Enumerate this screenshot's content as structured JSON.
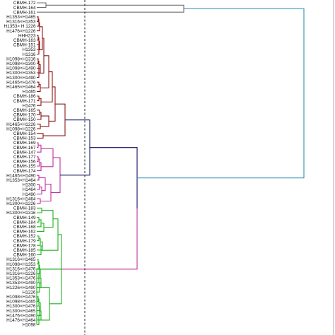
{
  "figure": {
    "type": "dendrogram",
    "leaves": [
      "CBMH-172",
      "CBMH-164",
      "CBMH-161",
      "H1353×H1465",
      "H1316×H1353",
      "H1353× H 1226",
      "H1476×H1226",
      "HHH223",
      "CBMH-163",
      "CBMH-151",
      "H1353",
      "H1316",
      "H1098×H1316",
      "H1098×H1300",
      "H1098×H1490",
      "H1300×H1353",
      "H1300×H1490",
      "H1465×H1476",
      "H1465×H1464",
      "H1465",
      "CBMH-186",
      "CBMH-171",
      "H1476",
      "CBMH-165",
      "CBMH-170",
      "CBMH-150",
      "H1465×H1226",
      "H1098×H1226",
      "CBMH-154",
      "CBMH-153",
      "CBMH-169",
      "CBMH-167",
      "CBMH-147",
      "CBMH-177",
      "CBMH-156",
      "CBMH-155",
      "CBMH-174",
      "H1465×H1490",
      "H1353×H1464",
      "H1300",
      "H1464",
      "H1490",
      "H1316×H1464",
      "H1300×H1226",
      "CBMH-183",
      "H1300×H1316",
      "CBMH-149",
      "CBMH-184",
      "CBMH-168",
      "CBMH-162",
      "CBMH-152",
      "CBMH-179",
      "CBMH-178",
      "CBMH-185",
      "CBMH-160",
      "H1316×H1465",
      "H1098×H1353",
      "H1316×H1476",
      "H1316×H1226",
      "H1353×H1476",
      "H1353×H1490",
      "H1226×H1490",
      "H1226",
      "H1098×H1476",
      "H1098×H1465",
      "H1300×H1476",
      "H1300×H1465",
      "H1476×H1490",
      "H1476×H1464",
      "H1098"
    ],
    "clusters": [
      {
        "name": "grey",
        "color": "#6d6d6d",
        "range": [
          0,
          2
        ]
      },
      {
        "name": "red",
        "color": "#8b1a1a",
        "range": [
          3,
          29
        ]
      },
      {
        "name": "magenta",
        "color": "#c0309a",
        "range": [
          30,
          43
        ]
      },
      {
        "name": "green",
        "color": "#1fb21f",
        "range": [
          44,
          69
        ]
      },
      {
        "name": "navy",
        "color": "#1a1f6b"
      },
      {
        "name": "teal",
        "color": "#2f8fb5"
      }
    ],
    "cut_line": {
      "style": "dashed",
      "color": "#111111"
    },
    "frame": {
      "color": "#bdbdbd"
    }
  }
}
